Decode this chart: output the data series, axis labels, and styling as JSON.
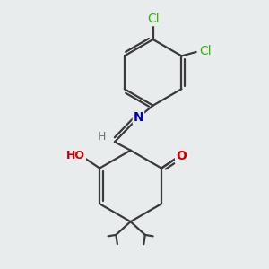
{
  "background_color": "#e8ecec",
  "atom_colors": {
    "C": "#3a3a3a",
    "N": "#0000bb",
    "O": "#cc0000",
    "Cl": "#33bb00",
    "H": "#707070"
  },
  "bond_color": "#3a3a3a",
  "bond_width": 1.6,
  "figsize": [
    3.0,
    3.0
  ],
  "dpi": 100
}
